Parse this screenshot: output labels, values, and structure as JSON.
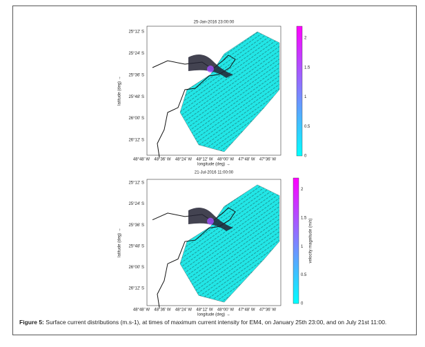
{
  "figure": {
    "panels": [
      {
        "title": "25-Jan-2016 23:00:00",
        "y_ticks": [
          "25°12' S",
          "25°24' S",
          "25°36' S",
          "25°48' S",
          "26°00' S",
          "26°12' S"
        ],
        "y_label": "latitude (deg) →",
        "x_ticks": [
          "48°48' W",
          "48°36' W",
          "48°24' W",
          "48°12' W",
          "48°00' W",
          "47°48' W",
          "47°36' W"
        ],
        "x_label": "longitude (deg) →",
        "colorbar_ticks": [
          2,
          1.5,
          1,
          0.5,
          0
        ]
      },
      {
        "title": "21-Jul-2016 11:00:00",
        "y_ticks": [
          "25°12' S",
          "25°24' S",
          "25°36' S",
          "25°48' S",
          "26°00' S",
          "26°12' S"
        ],
        "y_label": "latitude (deg) →",
        "x_ticks": [
          "48°48' W",
          "48°36' W",
          "48°24' W",
          "48°12' W",
          "48°00' W",
          "47°48' W",
          "47°36' W"
        ],
        "x_label": "longitude (deg) →",
        "colorbar_ticks": [
          2,
          1.5,
          1,
          0.5,
          0
        ],
        "colorbar_label": "velocity magnitude (m/s)"
      }
    ],
    "caption": {
      "label": "Figure 5:",
      "text": "Surface current distributions (m.s-1), at times of maximum current intensity for EM4, on January 25th 23:00, and on July 21st 11:00."
    }
  }
}
